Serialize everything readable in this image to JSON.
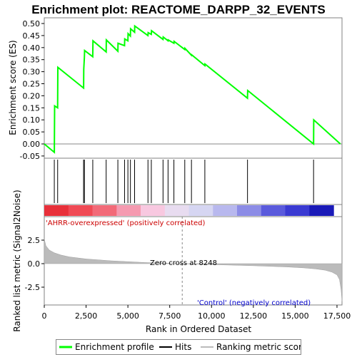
{
  "title": "Enrichment plot: REACTOME_DARPP_32_EVENTS",
  "chart_data": [
    {
      "type": "line",
      "panel": "enrichment",
      "ylabel": "Enrichment score (ES)",
      "ylim": [
        -0.05,
        0.5
      ],
      "yticks": [
        "-0.05",
        "0.00",
        "0.05",
        "0.10",
        "0.15",
        "0.20",
        "0.25",
        "0.30",
        "0.35",
        "0.40",
        "0.45",
        "0.50"
      ],
      "grid": false,
      "color": "#00ff00",
      "x": [
        0,
        600,
        620,
        800,
        810,
        2350,
        2360,
        2400,
        2410,
        2900,
        2910,
        3700,
        3710,
        4400,
        4410,
        4800,
        4810,
        5000,
        5010,
        5150,
        5160,
        5400,
        5410,
        6200,
        6210,
        6400,
        6410,
        7100,
        7110,
        7400,
        7410,
        7750,
        7760,
        8400,
        8410,
        8800,
        8810,
        9600,
        9610,
        12150,
        12160,
        16100,
        16110,
        17700
      ],
      "y": [
        0.0,
        -0.035,
        0.158,
        0.15,
        0.318,
        0.232,
        0.31,
        0.36,
        0.388,
        0.362,
        0.428,
        0.382,
        0.432,
        0.385,
        0.418,
        0.408,
        0.436,
        0.428,
        0.458,
        0.448,
        0.478,
        0.464,
        0.49,
        0.45,
        0.462,
        0.455,
        0.47,
        0.434,
        0.444,
        0.428,
        0.432,
        0.418,
        0.426,
        0.392,
        0.397,
        0.368,
        0.37,
        0.325,
        0.332,
        0.19,
        0.222,
        0.0,
        0.1,
        0.0
      ]
    },
    {
      "type": "hits",
      "panel": "hits",
      "hits": [
        600,
        800,
        2350,
        2400,
        2900,
        3700,
        4400,
        4800,
        5000,
        5150,
        5400,
        6200,
        6400,
        7100,
        7400,
        7750,
        8400,
        8800,
        9600,
        12150,
        16100
      ]
    },
    {
      "type": "area",
      "panel": "ranked-metric",
      "ylabel": "Ranked list metric (Signal2Noise)",
      "xlabel": "Rank in Ordered Dataset",
      "xlim": [
        0,
        17800
      ],
      "xticks": [
        "0",
        "2,500",
        "5,000",
        "7,500",
        "10,000",
        "12,500",
        "15,000",
        "17,500"
      ],
      "yticks": [
        "-2.5",
        "0.0",
        "2.5"
      ],
      "ylim": [
        -4.2,
        3.2
      ],
      "x": [
        0,
        100,
        300,
        600,
        1000,
        1500,
        2500,
        4000,
        6000,
        8248,
        10000,
        12500,
        14500,
        15500,
        16200,
        16800,
        17200,
        17500,
        17650,
        17750,
        17800
      ],
      "y": [
        2.6,
        1.9,
        1.45,
        1.15,
        0.92,
        0.72,
        0.5,
        0.3,
        0.12,
        0.0,
        -0.1,
        -0.22,
        -0.35,
        -0.45,
        -0.55,
        -0.7,
        -0.9,
        -1.2,
        -1.7,
        -2.8,
        -4.0
      ],
      "annotations": {
        "zero_cross": "Zero cross at 8248",
        "positive": "'AHRR-overexpressed' (positively correlated)",
        "negative": "'Control' (negatively correlated)"
      }
    }
  ],
  "legend": {
    "items": [
      {
        "label": "Enrichment profile",
        "color": "#00ff00"
      },
      {
        "label": "Hits",
        "color": "#000000"
      },
      {
        "label": "Ranking metric scores",
        "color": "#bbbbbb"
      }
    ]
  },
  "heat_colors": [
    "#e8303a",
    "#f04a55",
    "#f26a78",
    "#f59ab0",
    "#f8c8e0",
    "#e8dcf0",
    "#d6d6f2",
    "#b8b8ee",
    "#8c8ce6",
    "#5a5adc",
    "#3a3ad2",
    "#1a1ab8"
  ]
}
